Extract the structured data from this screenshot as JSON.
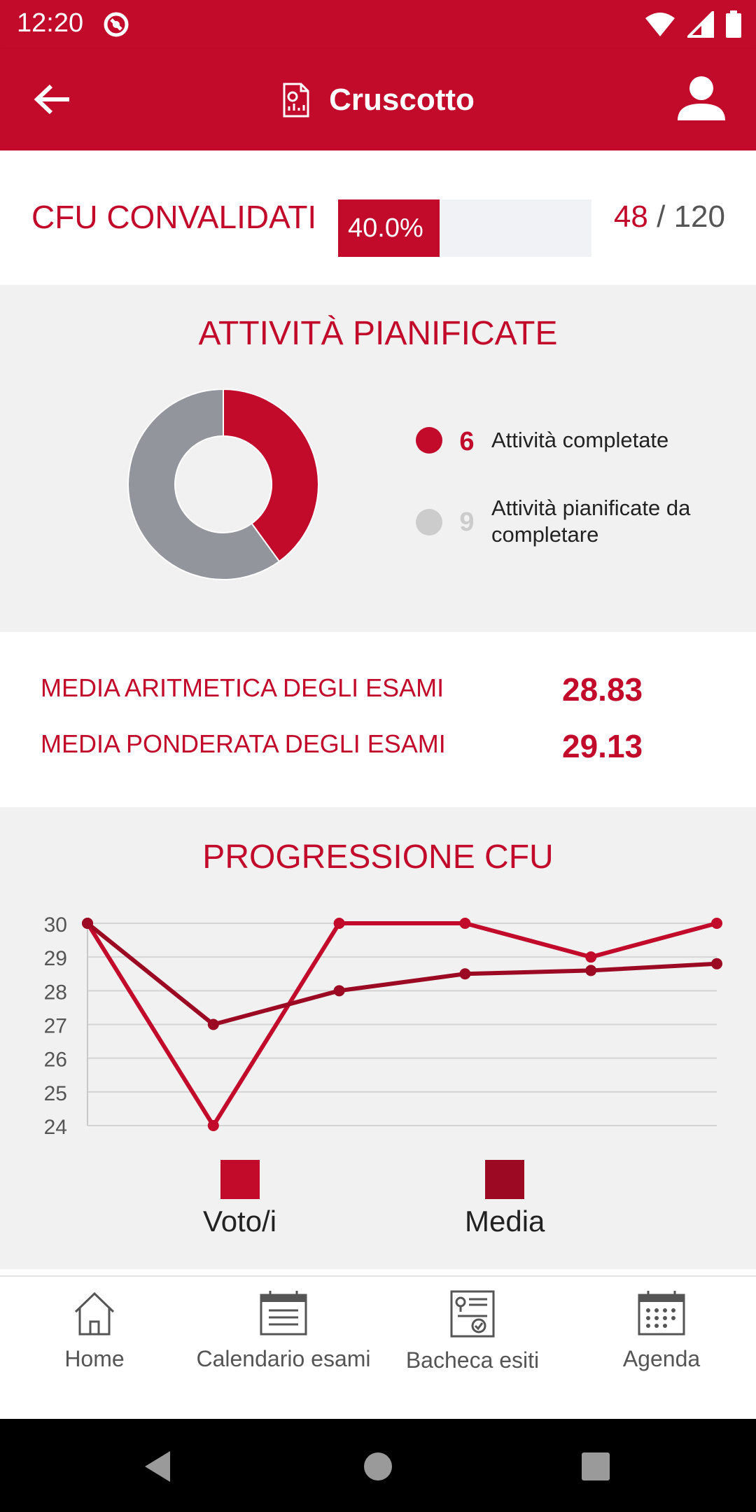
{
  "status_bar": {
    "time": "12:20"
  },
  "app_bar": {
    "title": "Cruscotto"
  },
  "cfu": {
    "label": "CFU CONVALIDATI",
    "percent_label": "40.0%",
    "progress": 0.4,
    "done": "48",
    "separator": "/",
    "total": "120"
  },
  "attivita": {
    "title": "ATTIVITÀ PIANIFICATE",
    "completed_count": "6",
    "completed_label": "Attività completate",
    "planned_count": "9",
    "planned_label": "Attività pianificate da completare",
    "colors": {
      "completed": "#c20a2b",
      "planned": "#92959b",
      "planned_dot": "#cccccc"
    }
  },
  "medie": {
    "aritmetica_label": "MEDIA ARITMETICA DEGLI ESAMI",
    "aritmetica_value": "28.83",
    "ponderata_label": "MEDIA PONDERATA DEGLI ESAMI",
    "ponderata_value": "29.13"
  },
  "progressione": {
    "title": "PROGRESSIONE CFU"
  },
  "chart_data": {
    "type": "line",
    "title": "PROGRESSIONE CFU",
    "x": [
      1,
      2,
      3,
      4,
      5,
      6
    ],
    "ylim": [
      24,
      30
    ],
    "yticks": [
      "30",
      "29",
      "28",
      "27",
      "26",
      "25",
      "24"
    ],
    "grid": true,
    "legend": "bottom",
    "series": [
      {
        "name": "Voto/i",
        "color": "#c20a2b",
        "values": [
          30,
          24,
          30,
          30,
          29,
          30
        ]
      },
      {
        "name": "Media",
        "color": "#9b0a22",
        "values": [
          30,
          27,
          28,
          28.5,
          28.6,
          28.8
        ]
      }
    ]
  },
  "bottom_nav": {
    "home": "Home",
    "calendario": "Calendario esami",
    "bacheca": "Bacheca esiti",
    "agenda": "Agenda"
  },
  "icons": [
    "radio-icon",
    "wifi-icon",
    "signal-icon",
    "battery-icon",
    "back-arrow-icon",
    "report-icon",
    "profile-icon",
    "home-icon",
    "calendar-list-icon",
    "noticeboard-icon",
    "agenda-icon",
    "nav-back-icon",
    "nav-home-icon",
    "nav-recents-icon"
  ],
  "colors": {
    "brand": "#c20a2b",
    "grey_bg": "#f1f1f1"
  }
}
